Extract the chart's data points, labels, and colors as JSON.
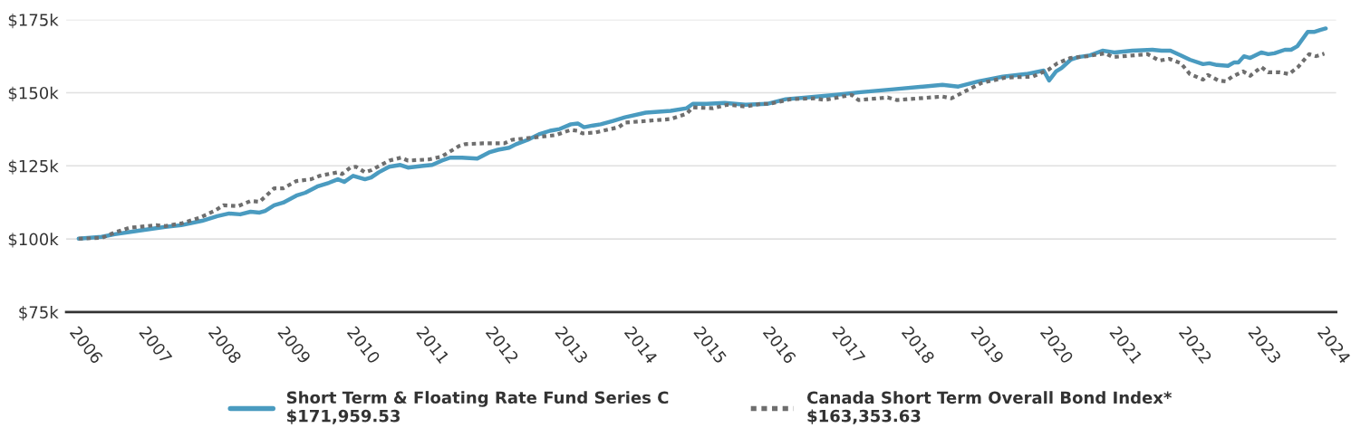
{
  "chart_data": {
    "type": "line",
    "xlim": [
      2005.82,
      2024.14
    ],
    "xticks": [
      2006,
      2007,
      2008,
      2009,
      2010,
      2011,
      2012,
      2013,
      2014,
      2015,
      2016,
      2017,
      2018,
      2019,
      2020,
      2021,
      2022,
      2023,
      2024
    ],
    "ylim": [
      75,
      175
    ],
    "yticks": [
      {
        "value": 75,
        "label": "$75k"
      },
      {
        "value": 100,
        "label": "$100k"
      },
      {
        "value": 125,
        "label": "$125k"
      },
      {
        "value": 150,
        "label": "$150k"
      },
      {
        "value": 175,
        "label": "$175k"
      }
    ],
    "grid": "y",
    "legend": "bottom",
    "series": [
      {
        "name": "Short Term & Floating Rate Fund Series C\n$171,959.53",
        "color": "#4a9bc0",
        "line_style": "solid",
        "x": [
          2006.0,
          2006.33,
          2006.52,
          2006.86,
          2007.25,
          2007.48,
          2007.78,
          2008.0,
          2008.17,
          2008.33,
          2008.48,
          2008.61,
          2008.69,
          2008.82,
          2008.95,
          2009.14,
          2009.27,
          2009.44,
          2009.61,
          2009.74,
          2009.83,
          2009.96,
          2010.13,
          2010.22,
          2010.33,
          2010.48,
          2010.64,
          2010.75,
          2010.97,
          2011.1,
          2011.24,
          2011.36,
          2011.53,
          2011.75,
          2011.92,
          2012.05,
          2012.21,
          2012.31,
          2012.48,
          2012.64,
          2012.8,
          2012.94,
          2013.1,
          2013.2,
          2013.29,
          2013.42,
          2013.53,
          2013.71,
          2013.88,
          2014.18,
          2014.54,
          2014.77,
          2014.86,
          2015.06,
          2015.32,
          2015.62,
          2015.93,
          2016.2,
          2016.5,
          2016.93,
          2017.28,
          2017.76,
          2018.46,
          2018.69,
          2018.98,
          2019.33,
          2019.67,
          2019.92,
          2020.0,
          2020.1,
          2020.18,
          2020.31,
          2020.42,
          2020.59,
          2020.77,
          2020.94,
          2021.2,
          2021.49,
          2021.62,
          2021.75,
          2021.9,
          2022.03,
          2022.22,
          2022.31,
          2022.42,
          2022.58,
          2022.67,
          2022.73,
          2022.81,
          2022.9,
          2023.06,
          2023.16,
          2023.25,
          2023.4,
          2023.49,
          2023.58,
          2023.73,
          2023.82,
          2023.91,
          2023.99
        ],
        "values": [
          100.1,
          100.7,
          101.6,
          102.8,
          104.1,
          104.7,
          106.2,
          107.8,
          108.7,
          108.4,
          109.3,
          109.0,
          109.6,
          111.5,
          112.4,
          114.8,
          115.8,
          117.9,
          119.2,
          120.4,
          119.5,
          121.6,
          120.4,
          121.0,
          122.8,
          124.7,
          125.3,
          124.4,
          125.0,
          125.3,
          126.8,
          127.8,
          127.8,
          127.5,
          129.6,
          130.5,
          131.2,
          132.4,
          133.9,
          135.8,
          137.0,
          137.6,
          139.2,
          139.5,
          138.2,
          138.8,
          139.2,
          140.4,
          141.6,
          143.2,
          143.8,
          144.7,
          146.2,
          146.2,
          146.5,
          145.9,
          146.2,
          147.8,
          148.4,
          149.3,
          150.2,
          151.2,
          152.7,
          152.1,
          153.9,
          155.5,
          156.4,
          157.6,
          154.2,
          157.3,
          158.5,
          161.3,
          162.2,
          162.8,
          164.4,
          163.8,
          164.4,
          164.7,
          164.4,
          164.4,
          162.8,
          161.3,
          159.8,
          160.1,
          159.5,
          159.2,
          160.4,
          160.4,
          162.5,
          161.9,
          163.8,
          163.2,
          163.5,
          164.7,
          164.7,
          165.9,
          170.8,
          170.8,
          171.5,
          172.0
        ]
      },
      {
        "name": "Canada Short Term Overall Bond Index*\n$163,353.63",
        "color": "#6e6e6e",
        "line_style": "dotted",
        "x": [
          2006.0,
          2006.34,
          2006.52,
          2006.73,
          2007.12,
          2007.25,
          2007.48,
          2007.74,
          2007.96,
          2008.09,
          2008.3,
          2008.48,
          2008.61,
          2008.82,
          2008.95,
          2009.14,
          2009.35,
          2009.48,
          2009.74,
          2009.8,
          2009.92,
          2010.0,
          2010.13,
          2010.22,
          2010.48,
          2010.65,
          2010.75,
          2011.05,
          2011.23,
          2011.49,
          2011.57,
          2011.83,
          2012.14,
          2012.25,
          2012.48,
          2012.88,
          2013.1,
          2013.19,
          2013.27,
          2013.45,
          2013.79,
          2013.88,
          2014.54,
          2014.77,
          2014.86,
          2015.15,
          2015.36,
          2015.62,
          2015.84,
          2015.97,
          2016.27,
          2016.63,
          2016.76,
          2017.15,
          2017.25,
          2017.67,
          2017.8,
          2018.46,
          2018.59,
          2018.69,
          2019.02,
          2019.37,
          2019.76,
          2019.99,
          2020.12,
          2020.31,
          2020.55,
          2020.81,
          2020.92,
          2021.42,
          2021.59,
          2021.73,
          2021.9,
          2022.03,
          2022.22,
          2022.29,
          2022.44,
          2022.55,
          2022.64,
          2022.8,
          2022.9,
          2023.06,
          2023.16,
          2023.33,
          2023.46,
          2023.59,
          2023.75,
          2023.85,
          2023.97
        ],
        "values": [
          100.1,
          100.4,
          102.2,
          103.8,
          104.7,
          104.4,
          105.3,
          107.2,
          109.6,
          111.5,
          111.2,
          113.0,
          112.7,
          117.3,
          117.3,
          119.8,
          120.4,
          121.6,
          122.8,
          122.2,
          124.4,
          124.7,
          122.8,
          123.5,
          126.8,
          127.8,
          126.8,
          127.2,
          128.1,
          131.8,
          132.4,
          132.7,
          132.7,
          133.9,
          134.5,
          135.5,
          137.3,
          137.0,
          136.1,
          136.4,
          138.2,
          139.8,
          141.0,
          142.8,
          145.0,
          144.7,
          145.9,
          145.3,
          146.2,
          146.2,
          147.8,
          148.1,
          147.5,
          149.3,
          147.5,
          148.4,
          147.5,
          148.7,
          148.1,
          149.3,
          153.3,
          155.2,
          155.5,
          157.9,
          160.1,
          161.9,
          162.5,
          163.5,
          162.2,
          163.2,
          161.0,
          161.6,
          160.1,
          156.4,
          154.5,
          156.1,
          154.2,
          153.9,
          155.5,
          157.3,
          155.8,
          158.8,
          157.0,
          157.0,
          156.4,
          158.8,
          163.2,
          162.5,
          163.4
        ]
      }
    ]
  }
}
